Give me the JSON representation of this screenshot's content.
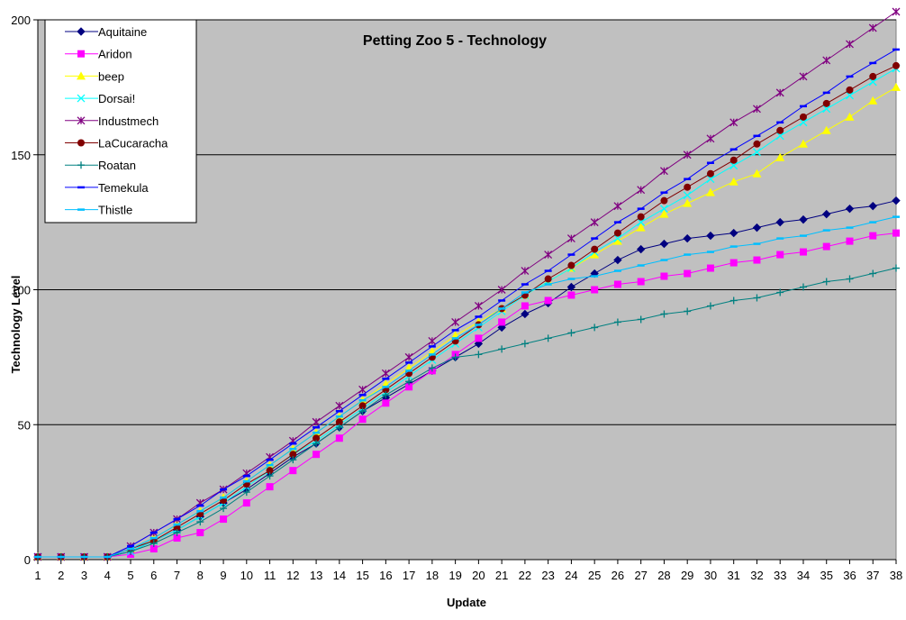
{
  "chart_data": {
    "type": "line",
    "title": "Petting Zoo 5 - Technology",
    "xlabel": "Update",
    "ylabel": "Technology Level",
    "ylim": [
      0,
      200
    ],
    "yticks": [
      0,
      50,
      100,
      150,
      200
    ],
    "grid": "horizontal",
    "legend_position": "top-left",
    "plot_background": "#c0c0c0",
    "x": [
      1,
      2,
      3,
      4,
      5,
      6,
      7,
      8,
      9,
      10,
      11,
      12,
      13,
      14,
      15,
      16,
      17,
      18,
      19,
      20,
      21,
      22,
      23,
      24,
      25,
      26,
      27,
      28,
      29,
      30,
      31,
      32,
      33,
      34,
      35,
      36,
      37,
      38
    ],
    "series": [
      {
        "name": "Aquitaine",
        "color": "#000080",
        "marker": "diamond",
        "values": [
          1,
          1,
          1,
          1,
          3,
          7,
          11,
          16,
          21,
          26,
          32,
          38,
          43,
          49,
          55,
          60,
          65,
          70,
          75,
          80,
          86,
          91,
          95,
          101,
          106,
          111,
          115,
          117,
          119,
          120,
          121,
          123,
          125,
          126,
          128,
          130,
          131,
          133
        ]
      },
      {
        "name": "Aridon",
        "color": "#ff00ff",
        "marker": "square",
        "values": [
          1,
          1,
          1,
          1,
          2,
          4,
          8,
          10,
          15,
          21,
          27,
          33,
          39,
          45,
          52,
          58,
          64,
          70,
          76,
          82,
          88,
          94,
          96,
          98,
          100,
          102,
          103,
          105,
          106,
          108,
          110,
          111,
          113,
          114,
          116,
          118,
          120,
          121
        ]
      },
      {
        "name": "beep",
        "color": "#ffff00",
        "marker": "triangle",
        "values": [
          1,
          1,
          1,
          1,
          4,
          8,
          13,
          18,
          23,
          29,
          35,
          41,
          47,
          53,
          59,
          65,
          71,
          77,
          83,
          88,
          93,
          98,
          103,
          108,
          113,
          118,
          123,
          128,
          132,
          136,
          140,
          143,
          149,
          154,
          159,
          164,
          170,
          175
        ]
      },
      {
        "name": "Dorsai!",
        "color": "#00ffff",
        "marker": "x",
        "values": [
          1,
          1,
          1,
          1,
          3,
          7,
          11,
          16,
          21,
          27,
          33,
          39,
          44,
          50,
          56,
          62,
          68,
          74,
          80,
          86,
          92,
          98,
          103,
          108,
          114,
          119,
          125,
          130,
          135,
          141,
          146,
          151,
          157,
          162,
          167,
          172,
          177,
          182
        ]
      },
      {
        "name": "Industmech",
        "color": "#800080",
        "marker": "star",
        "values": [
          1,
          1,
          1,
          1,
          5,
          10,
          15,
          21,
          26,
          32,
          38,
          44,
          51,
          57,
          63,
          69,
          75,
          81,
          88,
          94,
          100,
          107,
          113,
          119,
          125,
          131,
          137,
          144,
          150,
          156,
          162,
          167,
          173,
          179,
          185,
          191,
          197,
          203
        ]
      },
      {
        "name": "LaCucaracha",
        "color": "#800000",
        "marker": "circle",
        "values": [
          1,
          1,
          1,
          1,
          4,
          7,
          12,
          17,
          22,
          28,
          33,
          39,
          45,
          51,
          57,
          63,
          69,
          75,
          81,
          87,
          93,
          98,
          104,
          109,
          115,
          121,
          127,
          133,
          138,
          143,
          148,
          154,
          159,
          164,
          169,
          174,
          179,
          183
        ]
      },
      {
        "name": "Roatan",
        "color": "#008080",
        "marker": "plus",
        "values": [
          1,
          1,
          1,
          1,
          3,
          6,
          10,
          14,
          19,
          25,
          31,
          37,
          43,
          49,
          55,
          61,
          66,
          71,
          75,
          76,
          78,
          80,
          82,
          84,
          86,
          88,
          89,
          91,
          92,
          94,
          96,
          97,
          99,
          101,
          103,
          104,
          106,
          108
        ]
      },
      {
        "name": "Temekula",
        "color": "#0000ff",
        "marker": "dash",
        "values": [
          1,
          1,
          1,
          1,
          5,
          10,
          15,
          20,
          26,
          31,
          37,
          43,
          49,
          55,
          61,
          67,
          73,
          79,
          85,
          90,
          96,
          102,
          107,
          113,
          119,
          125,
          130,
          136,
          141,
          147,
          152,
          157,
          162,
          168,
          173,
          179,
          184,
          189
        ]
      },
      {
        "name": "Thistle",
        "color": "#00bfff",
        "marker": "dash",
        "values": [
          1,
          1,
          1,
          1,
          4,
          8,
          13,
          18,
          23,
          29,
          35,
          41,
          47,
          53,
          59,
          64,
          70,
          76,
          82,
          87,
          93,
          99,
          102,
          104,
          105,
          107,
          109,
          111,
          113,
          114,
          116,
          117,
          119,
          120,
          122,
          123,
          125,
          127
        ]
      }
    ]
  }
}
